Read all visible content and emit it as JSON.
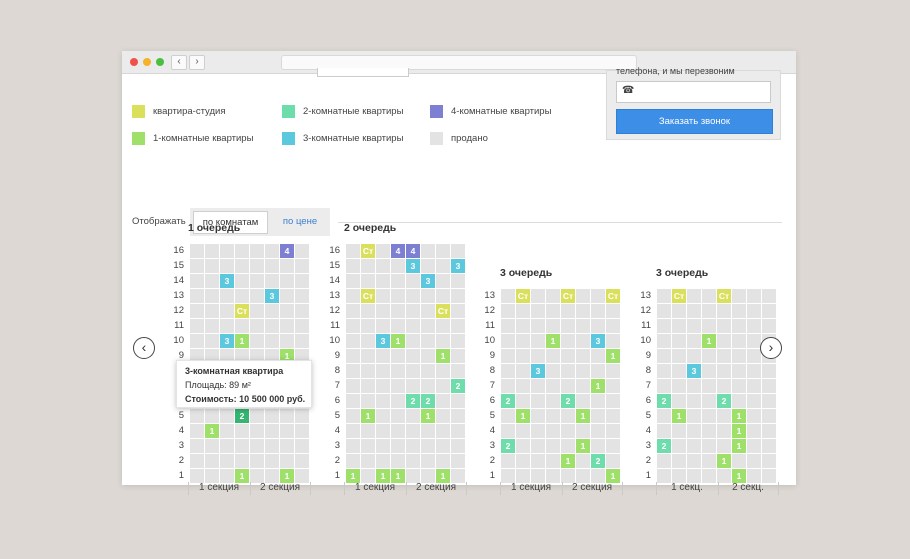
{
  "browser": {
    "dots": [
      {
        "name": "close",
        "color": "#f0524a"
      },
      {
        "name": "minimize",
        "color": "#f5b22b"
      },
      {
        "name": "maximize",
        "color": "#4bbf3f"
      }
    ],
    "back_glyph": "‹",
    "forward_glyph": "›"
  },
  "legend": [
    {
      "label": "квартира-студия",
      "color": "#dbe05c"
    },
    {
      "label": "2-комнатные квартиры",
      "color": "#6fdcab"
    },
    {
      "label": "4-комнатные квартиры",
      "color": "#7d7fd3"
    },
    {
      "label": "1-комнатные квартиры",
      "color": "#9ee06a"
    },
    {
      "label": "3-комнатные квартиры",
      "color": "#5bc8de"
    },
    {
      "label": "продано",
      "color": "#e3e3e3"
    }
  ],
  "callback": {
    "title_partial": "телефона, и мы перезвоним",
    "phone_icon": "☎",
    "phone_value": "",
    "button_label": "Заказать звонок"
  },
  "filter": {
    "label": "Отображать",
    "options": [
      "по комнатам",
      "по цене"
    ],
    "active": "по комнатам"
  },
  "colors": {
    "studio": "#dbe05c",
    "r1": "#9ee06a",
    "r2": "#6fdcab",
    "r3": "#5bc8de",
    "r4": "#7d7fd3",
    "sold": "#e3e3e3",
    "highlight": "#35b472",
    "accent": "#3d8ee6"
  },
  "buildings": [
    {
      "title": "1 очередь",
      "floors": 16,
      "sections": [
        "1 секция",
        "2 секция"
      ],
      "units": [
        {
          "floor": 16,
          "col": 7,
          "type": "4"
        },
        {
          "floor": 14,
          "col": 3,
          "type": "3"
        },
        {
          "floor": 13,
          "col": 6,
          "type": "3"
        },
        {
          "floor": 12,
          "col": 4,
          "type": "Ст"
        },
        {
          "floor": 10,
          "col": 3,
          "type": "3"
        },
        {
          "floor": 10,
          "col": 4,
          "type": "1"
        },
        {
          "floor": 9,
          "col": 7,
          "type": "1"
        },
        {
          "floor": 5,
          "col": 4,
          "type": "2",
          "highlight": true
        },
        {
          "floor": 4,
          "col": 2,
          "type": "1"
        },
        {
          "floor": 1,
          "col": 4,
          "type": "1"
        },
        {
          "floor": 1,
          "col": 7,
          "type": "1"
        }
      ]
    },
    {
      "title": "2 очередь",
      "floors": 16,
      "sections": [
        "1 секция",
        "2 секция"
      ],
      "units": [
        {
          "floor": 16,
          "col": 2,
          "type": "Ст"
        },
        {
          "floor": 16,
          "col": 4,
          "type": "4"
        },
        {
          "floor": 16,
          "col": 5,
          "type": "4"
        },
        {
          "floor": 15,
          "col": 5,
          "type": "3"
        },
        {
          "floor": 15,
          "col": 8,
          "type": "3"
        },
        {
          "floor": 14,
          "col": 6,
          "type": "3"
        },
        {
          "floor": 13,
          "col": 2,
          "type": "Ст"
        },
        {
          "floor": 12,
          "col": 7,
          "type": "Ст"
        },
        {
          "floor": 10,
          "col": 3,
          "type": "3"
        },
        {
          "floor": 10,
          "col": 4,
          "type": "1"
        },
        {
          "floor": 9,
          "col": 7,
          "type": "1"
        },
        {
          "floor": 7,
          "col": 8,
          "type": "2"
        },
        {
          "floor": 6,
          "col": 5,
          "type": "2"
        },
        {
          "floor": 6,
          "col": 6,
          "type": "2"
        },
        {
          "floor": 5,
          "col": 2,
          "type": "1"
        },
        {
          "floor": 5,
          "col": 6,
          "type": "1"
        },
        {
          "floor": 1,
          "col": 1,
          "type": "1"
        },
        {
          "floor": 1,
          "col": 3,
          "type": "1"
        },
        {
          "floor": 1,
          "col": 4,
          "type": "1"
        },
        {
          "floor": 1,
          "col": 7,
          "type": "1"
        }
      ]
    },
    {
      "title": "3 очередь",
      "floors": 13,
      "sections": [
        "1 секция",
        "2 секция"
      ],
      "units": [
        {
          "floor": 13,
          "col": 2,
          "type": "Ст"
        },
        {
          "floor": 13,
          "col": 5,
          "type": "Ст"
        },
        {
          "floor": 13,
          "col": 8,
          "type": "Ст"
        },
        {
          "floor": 10,
          "col": 4,
          "type": "1"
        },
        {
          "floor": 10,
          "col": 7,
          "type": "3"
        },
        {
          "floor": 9,
          "col": 8,
          "type": "1"
        },
        {
          "floor": 8,
          "col": 3,
          "type": "3"
        },
        {
          "floor": 7,
          "col": 7,
          "type": "1"
        },
        {
          "floor": 6,
          "col": 1,
          "type": "2"
        },
        {
          "floor": 6,
          "col": 5,
          "type": "2"
        },
        {
          "floor": 5,
          "col": 2,
          "type": "1"
        },
        {
          "floor": 5,
          "col": 6,
          "type": "1"
        },
        {
          "floor": 3,
          "col": 1,
          "type": "2"
        },
        {
          "floor": 3,
          "col": 6,
          "type": "1"
        },
        {
          "floor": 2,
          "col": 5,
          "type": "1"
        },
        {
          "floor": 2,
          "col": 7,
          "type": "2"
        },
        {
          "floor": 1,
          "col": 8,
          "type": "1"
        }
      ]
    },
    {
      "title": "3 очередь",
      "floors": 13,
      "sections": [
        "1 секц.",
        "2 секц."
      ],
      "units": [
        {
          "floor": 13,
          "col": 2,
          "type": "Ст"
        },
        {
          "floor": 13,
          "col": 5,
          "type": "Ст"
        },
        {
          "floor": 10,
          "col": 4,
          "type": "1"
        },
        {
          "floor": 8,
          "col": 3,
          "type": "3"
        },
        {
          "floor": 6,
          "col": 1,
          "type": "2"
        },
        {
          "floor": 6,
          "col": 5,
          "type": "2"
        },
        {
          "floor": 5,
          "col": 2,
          "type": "1"
        },
        {
          "floor": 5,
          "col": 6,
          "type": "1"
        },
        {
          "floor": 4,
          "col": 6,
          "type": "1"
        },
        {
          "floor": 3,
          "col": 1,
          "type": "2"
        },
        {
          "floor": 3,
          "col": 6,
          "type": "1"
        },
        {
          "floor": 2,
          "col": 5,
          "type": "1"
        },
        {
          "floor": 1,
          "col": 6,
          "type": "1"
        }
      ]
    }
  ],
  "tooltip": {
    "title": "3-комнатная квартира",
    "area": "Площадь: 89 м²",
    "price": "Стоимость: 10 500 000 руб."
  },
  "nav": {
    "prev_glyph": "‹",
    "next_glyph": "›"
  }
}
